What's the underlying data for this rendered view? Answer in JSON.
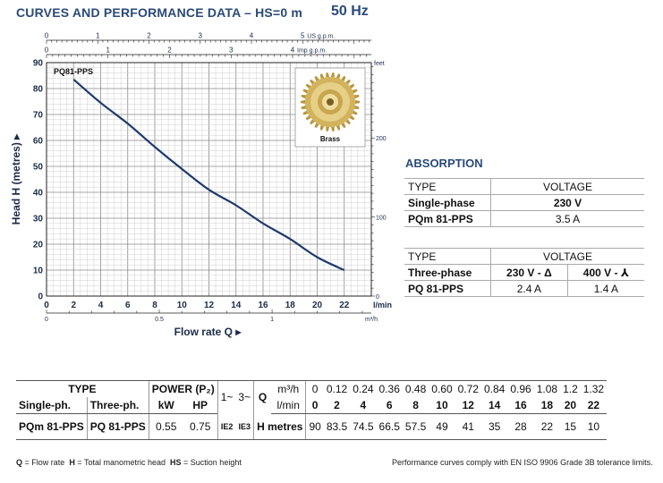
{
  "header": {
    "title": "CURVES AND PERFORMANCE DATA – HS=0 m",
    "frequency": "50 Hz"
  },
  "chart_data": {
    "type": "line",
    "series": [
      {
        "name": "PQ81-PPS",
        "x": [
          2,
          4,
          6,
          8,
          10,
          12,
          14,
          16,
          18,
          20,
          22
        ],
        "y": [
          83.5,
          74.5,
          66.5,
          57.5,
          49,
          41,
          35,
          28,
          22,
          15,
          10
        ]
      }
    ],
    "xlabel": "Flow rate Q",
    "xunit": "l/min",
    "ylabel": "Head H (metres)",
    "xlim": [
      0,
      24
    ],
    "ylim": [
      0,
      90
    ],
    "x_ticks": [
      0,
      2,
      4,
      6,
      8,
      10,
      12,
      14,
      16,
      18,
      20,
      22
    ],
    "y_ticks": [
      0,
      10,
      20,
      30,
      40,
      50,
      60,
      70,
      80,
      90
    ],
    "top_axes": [
      {
        "unit": "US g.p.m.",
        "ticks": [
          0,
          1,
          2,
          3,
          4,
          5
        ]
      },
      {
        "unit": "Imp g.p.m.",
        "ticks": [
          0,
          1,
          2,
          3,
          4
        ]
      }
    ],
    "bottom_axis2": {
      "unit": "m³/h",
      "ticks": [
        "0",
        "0.5",
        "1"
      ]
    },
    "right_axis": {
      "unit": "feet",
      "ticks": [
        0,
        100,
        200
      ]
    },
    "grid": true,
    "impeller_label": "Brass"
  },
  "absorption": {
    "title": "ABSORPTION",
    "single": {
      "type_label": "TYPE",
      "voltage_label": "VOLTAGE",
      "phase": "Single-phase",
      "voltage": "230 V",
      "model": "PQm 81-PPS",
      "current": "3.5 A"
    },
    "three": {
      "type_label": "TYPE",
      "voltage_label": "VOLTAGE",
      "phase": "Three-phase",
      "voltage1": "230 V - Δ",
      "voltage2": "400 V - ⅄",
      "model": "PQ 81-PPS",
      "current1": "2.4 A",
      "current2": "1.4 A"
    }
  },
  "performance": {
    "type": "TYPE",
    "power": "POWER (P₂)",
    "single_ph": "Single-ph.",
    "three_ph": "Three-ph.",
    "kw": "kW",
    "hp": "HP",
    "ph1": "1~",
    "ph3": "3~",
    "q": "Q",
    "m3h": "m³/h",
    "lmin": "l/min",
    "q_m3h": [
      "0",
      "0.12",
      "0.24",
      "0.36",
      "0.48",
      "0.60",
      "0.72",
      "0.84",
      "0.96",
      "1.08",
      "1.2",
      "1.32"
    ],
    "q_lmin": [
      "0",
      "2",
      "4",
      "6",
      "8",
      "10",
      "12",
      "14",
      "16",
      "18",
      "20",
      "22"
    ],
    "model_single": "PQm 81-PPS",
    "model_three": "PQ 81-PPS",
    "power_kw": "0.55",
    "power_hp": "0.75",
    "ie1": "IE2",
    "ie3": "IE3",
    "h_label": "H metres",
    "heads": [
      "90",
      "83.5",
      "74.5",
      "66.5",
      "57.5",
      "49",
      "41",
      "35",
      "28",
      "22",
      "15",
      "10"
    ]
  },
  "footer": {
    "legend_q": "Q",
    "legend_q_text": "= Flow rate",
    "legend_h": "H",
    "legend_h_text": "= Total manometric head",
    "legend_hs": "HS",
    "legend_hs_text": "= Suction height",
    "compliance": "Performance curves comply with EN ISO 9906 Grade 3B tolerance limits."
  }
}
